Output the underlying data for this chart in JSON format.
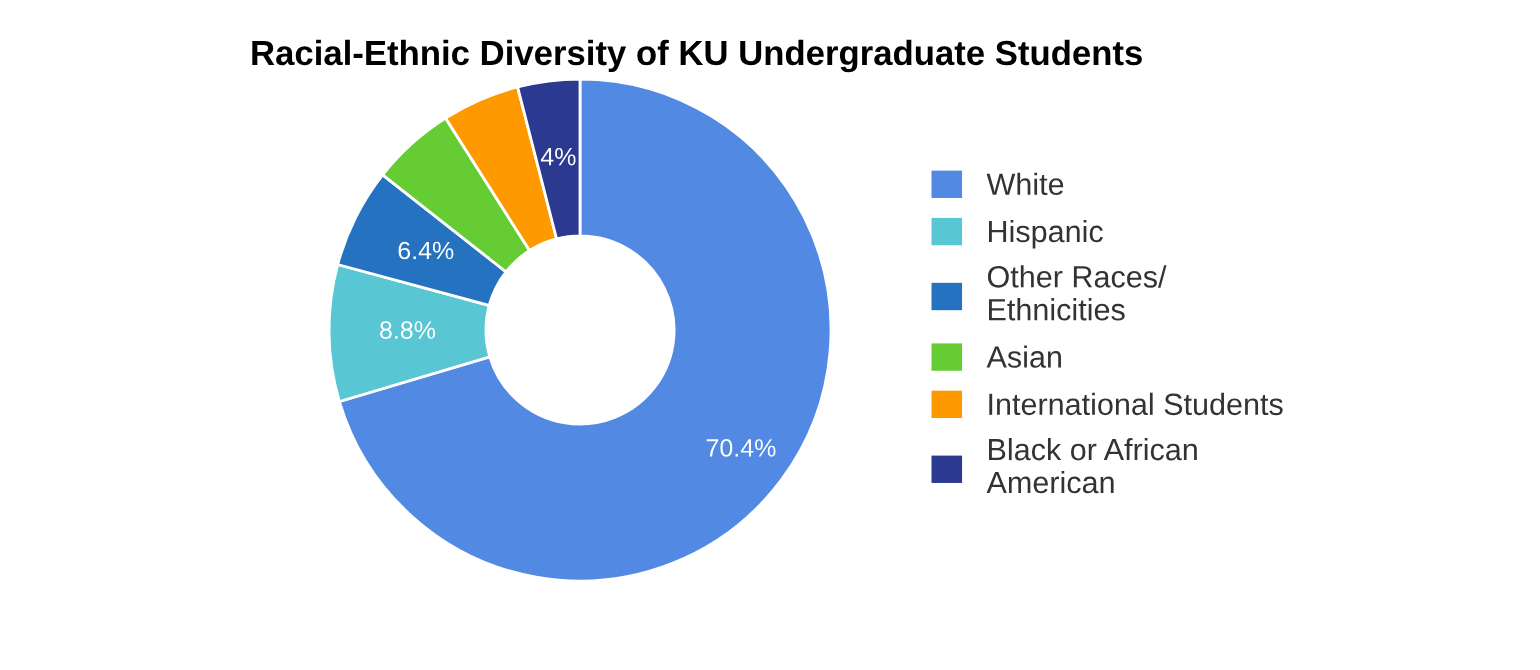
{
  "chart_data": {
    "type": "donut",
    "title": "Racial-Ethnic Diversity of KU Undergraduate Students",
    "categories": [
      "White",
      "Hispanic",
      "Other Races/\nEthnicities",
      "Asian",
      "International Students",
      "Black or African\nAmerican"
    ],
    "values": [
      70.4,
      8.8,
      6.4,
      5.4,
      5.0,
      4
    ],
    "value_labels": [
      "70.4%",
      "8.8%",
      "6.4%",
      null,
      null,
      "4%"
    ],
    "colors": [
      "#5189e3",
      "#58c6d3",
      "#2472c0",
      "#66cc33",
      "#ff9900",
      "#2b3990"
    ],
    "legend": "right"
  }
}
